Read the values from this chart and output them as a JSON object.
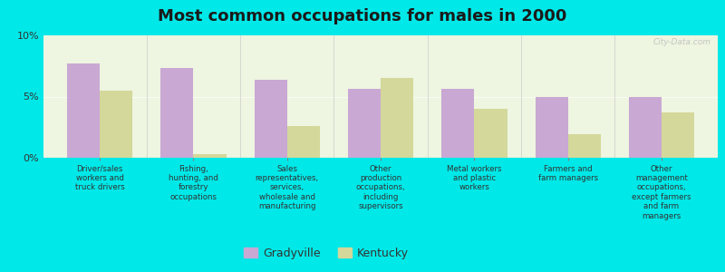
{
  "title": "Most common occupations for males in 2000",
  "categories": [
    "Driver/sales\nworkers and\ntruck drivers",
    "Fishing,\nhunting, and\nforestry\noccupations",
    "Sales\nrepresentatives,\nservices,\nwholesale and\nmanufacturing",
    "Other\nproduction\noccupations,\nincluding\nsupervisors",
    "Metal workers\nand plastic\nworkers",
    "Farmers and\nfarm managers",
    "Other\nmanagement\noccupations,\nexcept farmers\nand farm\nmanagers"
  ],
  "gradyville": [
    7.7,
    7.3,
    6.4,
    5.6,
    5.6,
    5.0,
    5.0
  ],
  "kentucky": [
    5.5,
    0.3,
    2.6,
    6.5,
    4.0,
    1.9,
    3.7
  ],
  "bar_color_gradyville": "#c9a8d4",
  "bar_color_kentucky": "#d4d89a",
  "background_color": "#00e8e8",
  "plot_bg_color": "#eef5e0",
  "ylim": [
    0,
    10
  ],
  "yticks": [
    0,
    5,
    10
  ],
  "ytick_labels": [
    "0%",
    "5%",
    "10%"
  ],
  "legend_label_gradyville": "Gradyville",
  "legend_label_kentucky": "Kentucky",
  "bar_width": 0.35
}
